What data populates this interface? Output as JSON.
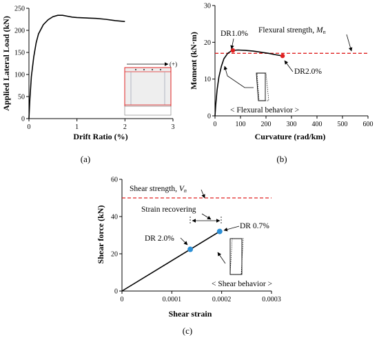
{
  "colors": {
    "curve": "#000000",
    "limit": "#e02020",
    "point_red": "#e02020",
    "point_blue": "#2b8fd6"
  },
  "chart_data": [
    {
      "id": "a",
      "type": "line",
      "caption": "(a)",
      "xlabel": "Drift Ratio (%)",
      "ylabel": "Applied Lateral Load (kN)",
      "xlim": [
        0,
        3
      ],
      "ylim": [
        0,
        250
      ],
      "xticks": [
        "0",
        "1",
        "2",
        "3"
      ],
      "yticks": [
        "0",
        "50",
        "100",
        "150",
        "200",
        "250"
      ],
      "x": [
        0,
        0.02,
        0.05,
        0.1,
        0.15,
        0.2,
        0.3,
        0.4,
        0.5,
        0.6,
        0.7,
        0.8,
        0.9,
        1.0,
        1.2,
        1.4,
        1.6,
        1.8,
        2.0
      ],
      "y": [
        0,
        45,
        95,
        140,
        172,
        192,
        213,
        224,
        231,
        234,
        234,
        232,
        230,
        229,
        228,
        227,
        225,
        222,
        220
      ],
      "inset_label": "(+)",
      "grid": false
    },
    {
      "id": "b",
      "type": "line",
      "caption": "(b)",
      "xlabel": "Curvature (rad/km)",
      "ylabel": "Moment (kN·m)",
      "xlim": [
        0,
        600
      ],
      "ylim": [
        0,
        30
      ],
      "xticks": [
        "0",
        "100",
        "200",
        "300",
        "400",
        "500",
        "600"
      ],
      "yticks": [
        "0",
        "10",
        "20",
        "30"
      ],
      "x": [
        0,
        3,
        8,
        15,
        25,
        35,
        50,
        65,
        70,
        90,
        120,
        150,
        180,
        210,
        240,
        265
      ],
      "y": [
        0,
        3,
        7,
        10.5,
        13.5,
        15.5,
        17,
        17.7,
        17.8,
        17.9,
        17.8,
        17.6,
        17.3,
        17,
        16.6,
        16.3
      ],
      "limit_line": {
        "label": "Flexural strength, ",
        "symbol": "M",
        "subscript": "n",
        "value": 17
      },
      "points": [
        {
          "label": "DR1.0%",
          "x": 70,
          "y": 17.8
        },
        {
          "label": "DR2.0%",
          "x": 265,
          "y": 16.3
        }
      ],
      "note": "< Flexural behavior >",
      "grid": false
    },
    {
      "id": "c",
      "type": "line",
      "caption": "(c)",
      "xlabel": "Shear strain",
      "ylabel": "Shear force (kN)",
      "xlim": [
        0,
        0.0003
      ],
      "ylim": [
        0,
        60
      ],
      "xticks": [
        "0",
        "0.0001",
        "0.0002",
        "0.0003"
      ],
      "yticks": [
        "0",
        "20",
        "40",
        "60"
      ],
      "x": [
        0,
        0.000196
      ],
      "y": [
        0,
        32
      ],
      "limit_line": {
        "label": "Shear strength, ",
        "symbol": "V",
        "subscript": "n",
        "value": 50
      },
      "points": [
        {
          "label": "DR 0.7%",
          "x": 0.000196,
          "y": 32
        },
        {
          "label": "DR 2.0%",
          "x": 0.000137,
          "y": 22.4
        }
      ],
      "recover_label": "Strain recovering",
      "note": "< Shear behavior >",
      "grid": false
    }
  ]
}
